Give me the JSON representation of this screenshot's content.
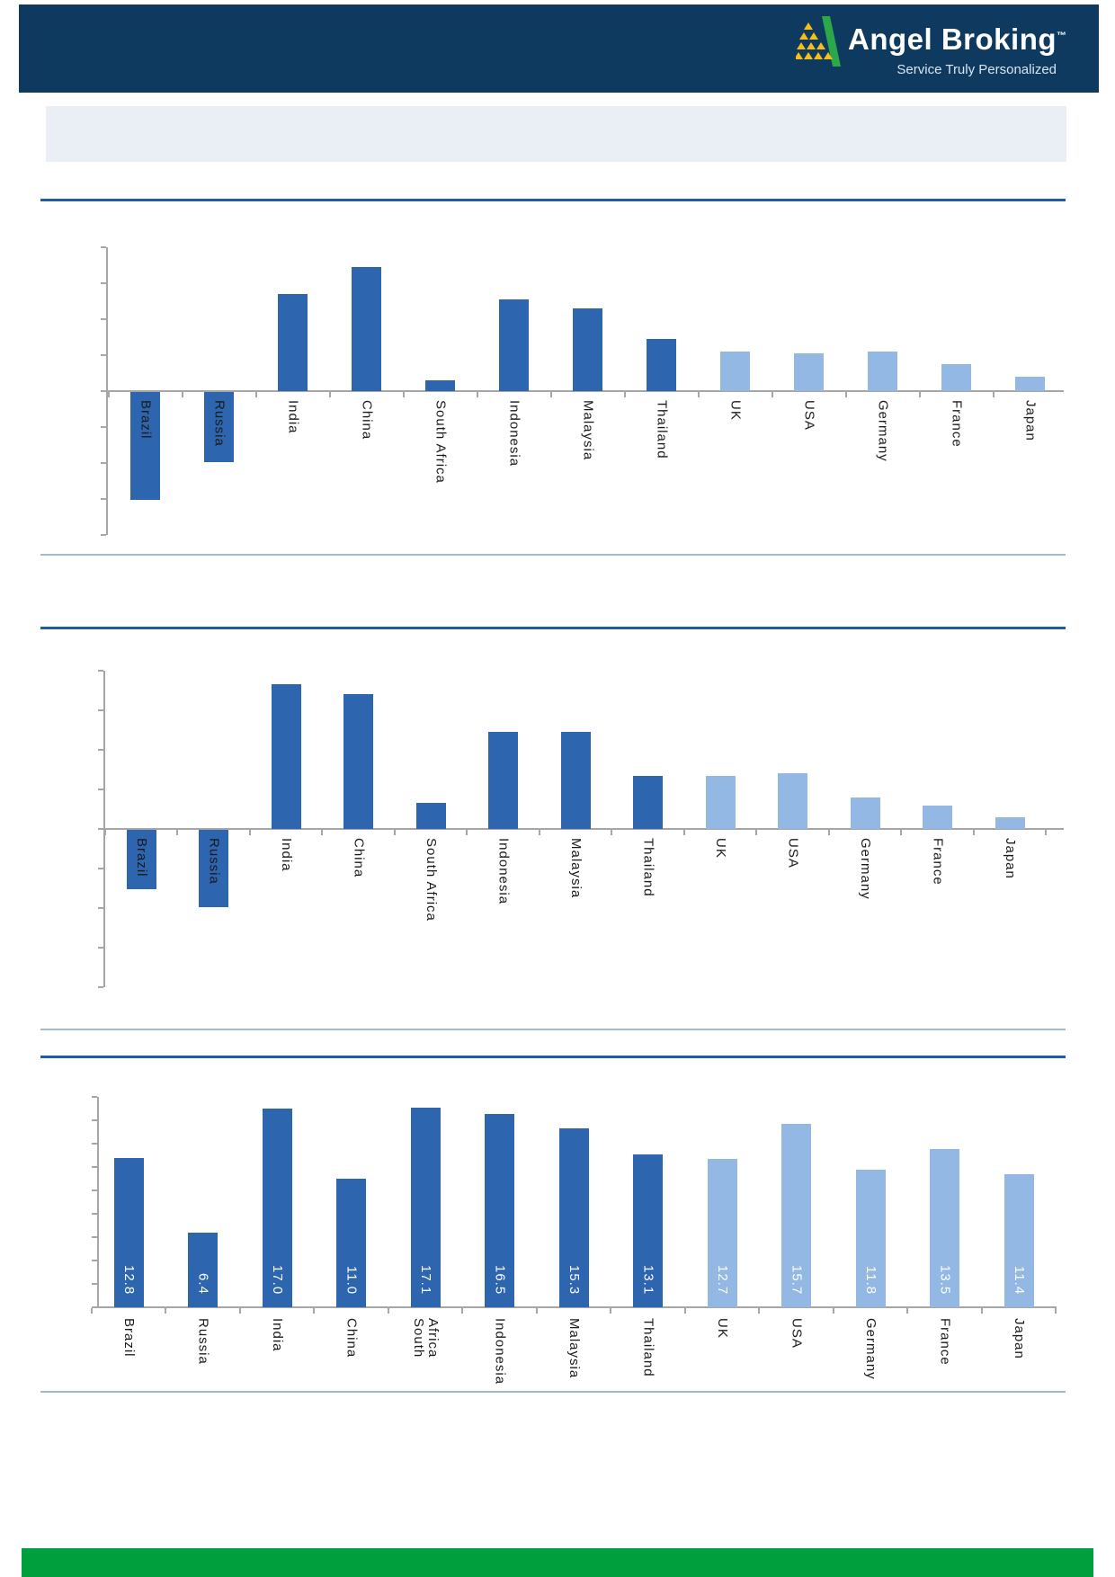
{
  "header": {
    "brand": "Angel Broking",
    "trademark": "™",
    "tagline": "Service Truly Personalized"
  },
  "title_box": {
    "text": ""
  },
  "colors": {
    "header_bg": "#0F3A60",
    "accent_line": "#1E5CA8",
    "separator_line": "#9FB9D0",
    "bar_dark": "#2E65AF",
    "bar_light": "#92B8E3",
    "axis_gray": "#A6A6A6",
    "title_box_bg": "#E9EFF5",
    "footer_green": "#009F3E",
    "logo_green": "#2BA84A",
    "logo_yellow": "#F8BE15",
    "category_label": "#1A1A1A",
    "value_label": "#FFFFFF"
  },
  "chart_data": [
    {
      "type": "bar",
      "title": "",
      "categories": [
        "Brazil",
        "Russia",
        "India",
        "China",
        "South Africa",
        "Indonesia",
        "Malaysia",
        "Thailand",
        "UK",
        "USA",
        "Germany",
        "France",
        "Japan"
      ],
      "values": [
        -6.0,
        -3.9,
        5.4,
        6.9,
        0.6,
        5.1,
        4.6,
        2.9,
        2.2,
        2.1,
        2.2,
        1.5,
        0.8
      ],
      "ylim": [
        -8,
        8
      ],
      "ytick": 2,
      "grid": false,
      "legend": "none",
      "dark_count": 8,
      "value_labels": null,
      "note": "no axis numbers shown; first 8 bars dark blue, last 5 light blue; labels rotated vertical"
    },
    {
      "type": "bar",
      "title": "",
      "categories": [
        "Brazil",
        "Russia",
        "India",
        "China",
        "South Africa",
        "Indonesia",
        "Malaysia",
        "Thailand",
        "UK",
        "USA",
        "Germany",
        "France",
        "Japan"
      ],
      "values": [
        -3.0,
        -3.9,
        7.3,
        6.8,
        1.3,
        4.9,
        4.9,
        2.7,
        2.7,
        2.8,
        1.6,
        1.2,
        0.6
      ],
      "ylim": [
        -8,
        8
      ],
      "ytick": 2,
      "grid": false,
      "legend": "none",
      "dark_count": 8,
      "value_labels": null,
      "note": "no axis numbers shown; first 8 bars dark blue, last 5 light blue; labels rotated vertical"
    },
    {
      "type": "bar",
      "title": "",
      "categories": [
        "Brazil",
        "Russia",
        "India",
        "China",
        "South Africa",
        "Indonesia",
        "Malaysia",
        "Thailand",
        "UK",
        "USA",
        "Germany",
        "France",
        "Japan"
      ],
      "values": [
        12.8,
        6.4,
        17.0,
        11.0,
        17.1,
        16.5,
        15.3,
        13.1,
        12.7,
        15.7,
        11.8,
        13.5,
        11.4
      ],
      "ylim": [
        0,
        18
      ],
      "ytick": 2,
      "grid": false,
      "legend": "none",
      "dark_count": 8,
      "value_labels": [
        "12.8",
        "6.4",
        "17.0",
        "11.0",
        "17.1",
        "16.5",
        "15.3",
        "13.1",
        "12.7",
        "15.7",
        "11.8",
        "13.5",
        "11.4"
      ],
      "note": "white value labels inside bar bases; South Africa label wraps to two vertical lines"
    }
  ]
}
